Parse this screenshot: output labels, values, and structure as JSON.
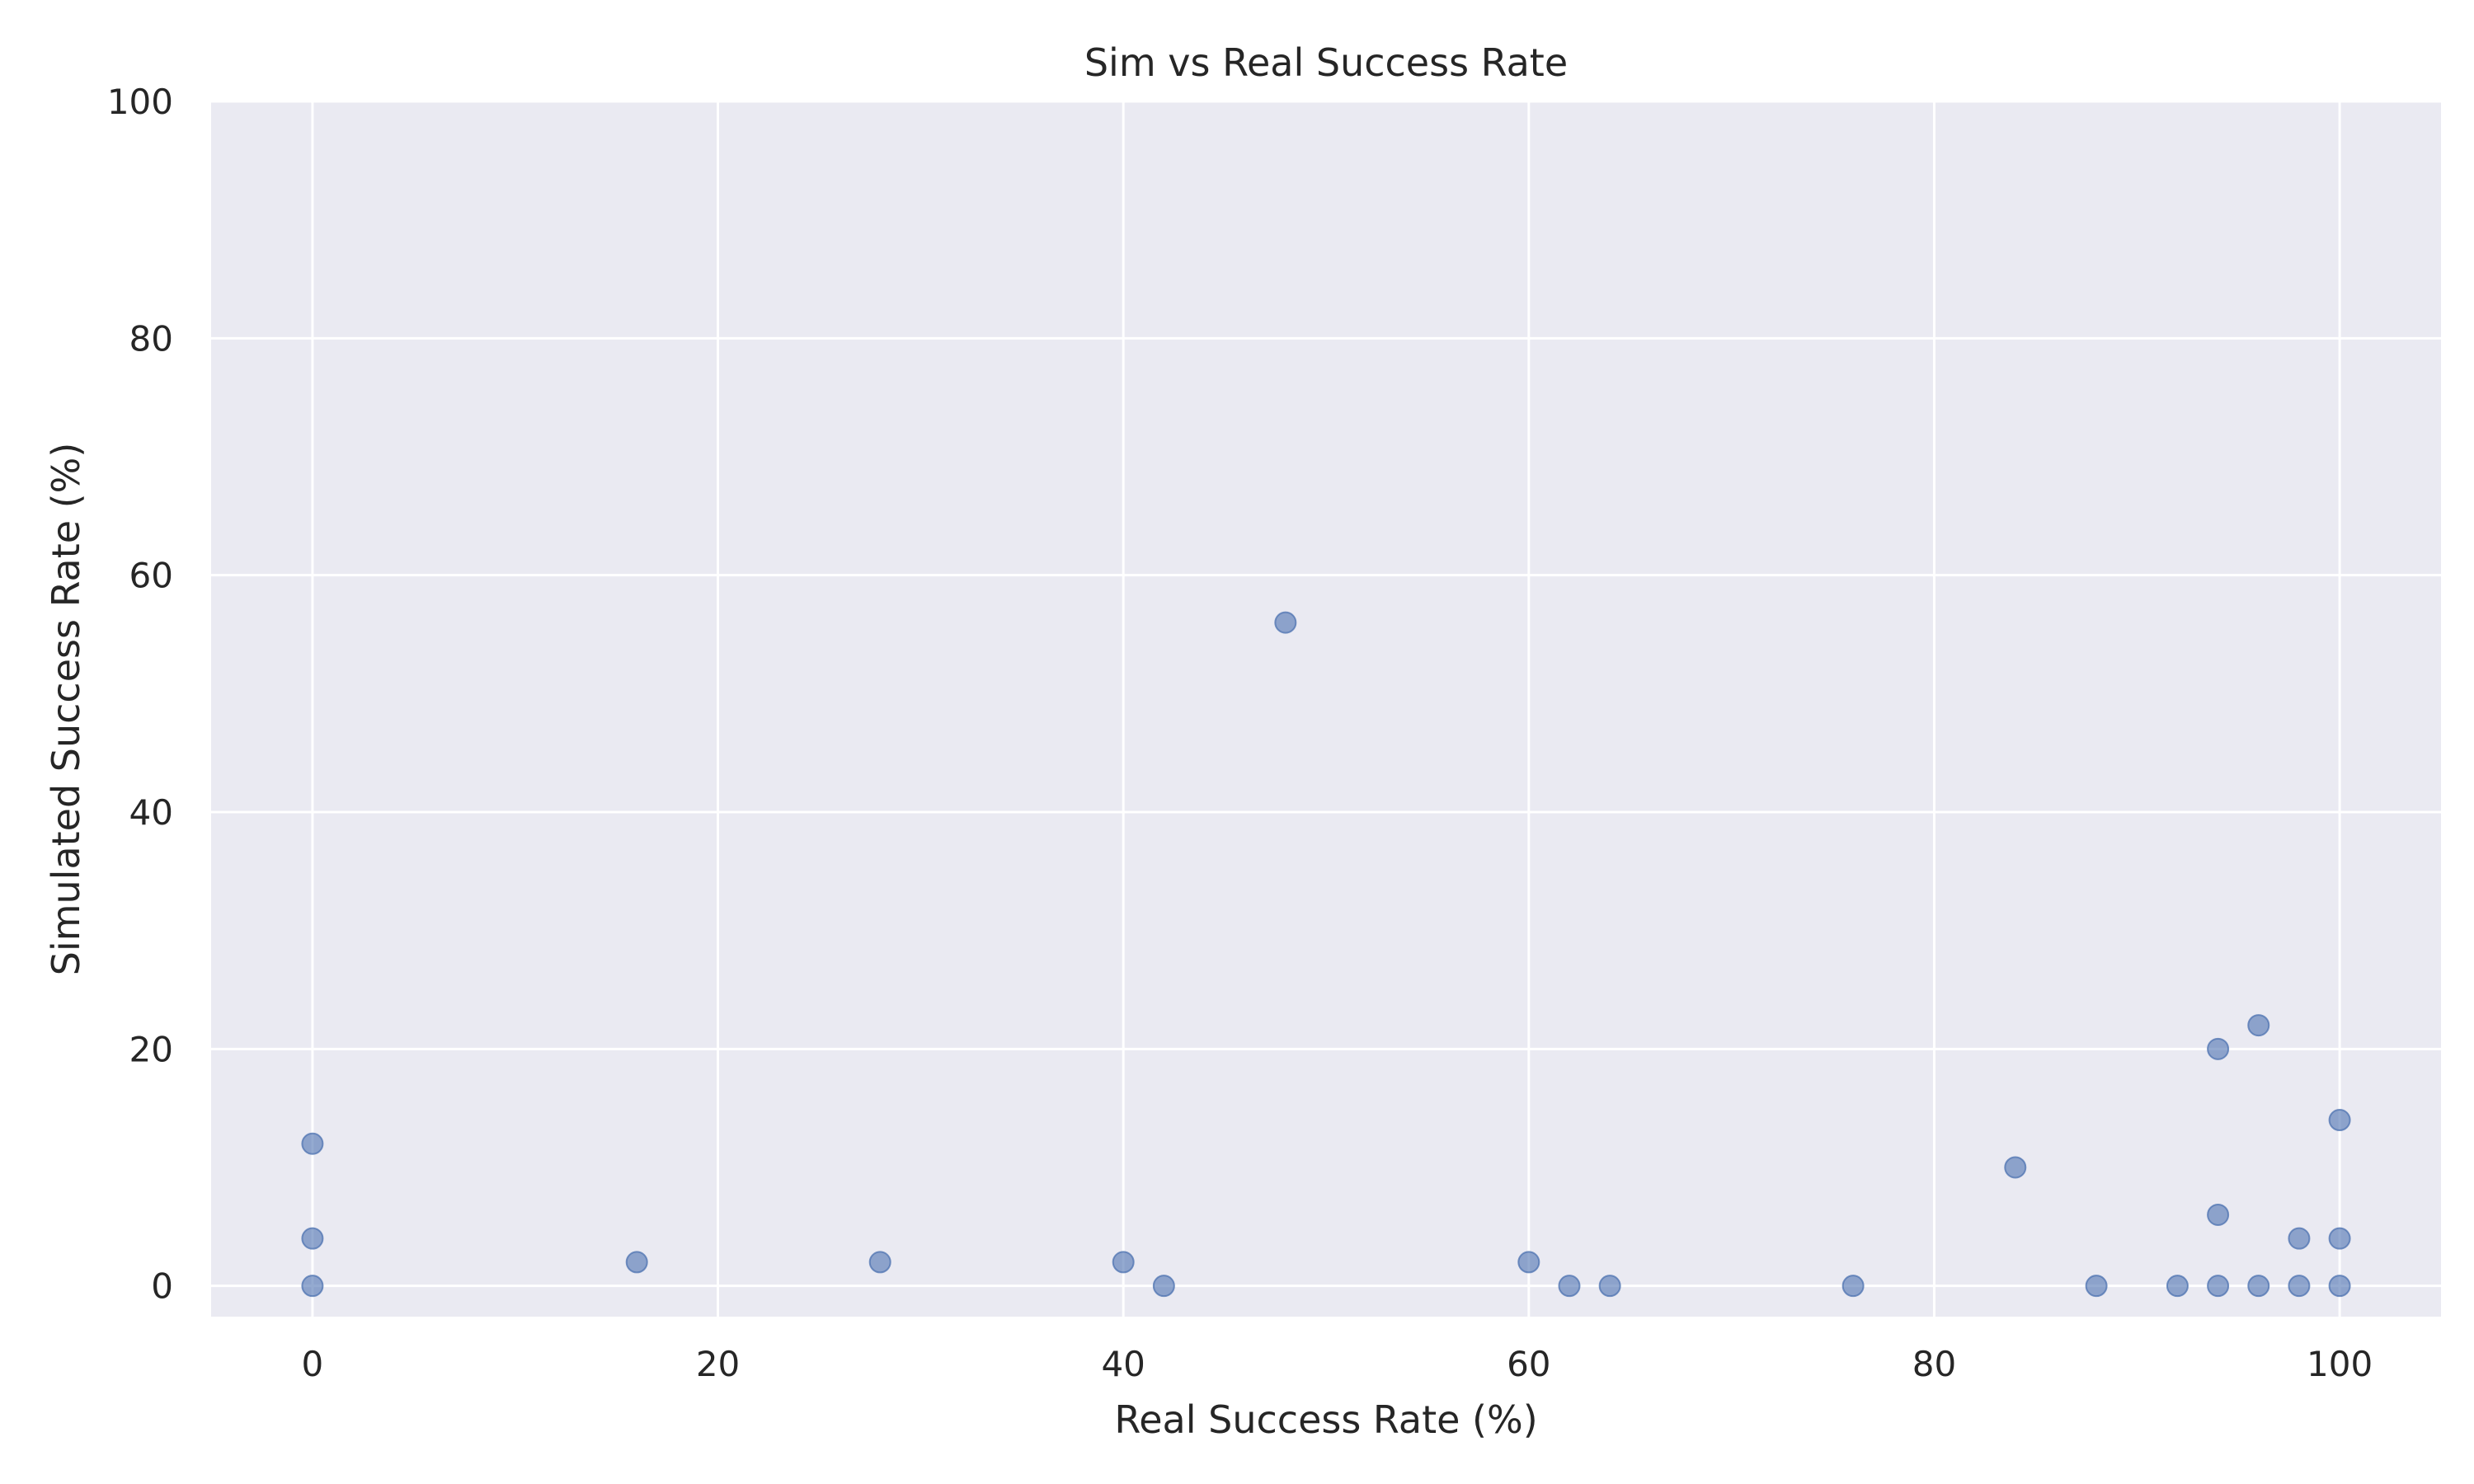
{
  "chart_data": {
    "type": "scatter",
    "title": "Sim vs Real Success Rate",
    "xlabel": "Real Success Rate (%)",
    "ylabel": "Simulated Success Rate (%)",
    "xlim": [
      -5,
      105
    ],
    "ylim": [
      -2.6,
      100
    ],
    "xticks": [
      0,
      20,
      40,
      60,
      80,
      100
    ],
    "yticks": [
      0,
      20,
      40,
      60,
      80,
      100
    ],
    "xtick_labels": [
      "0",
      "20",
      "40",
      "60",
      "80",
      "100"
    ],
    "ytick_labels": [
      "0",
      "20",
      "40",
      "60",
      "80",
      "100"
    ],
    "grid": true,
    "colors": {
      "background": "#eaeaf2",
      "grid": "#ffffff",
      "point": "#4c72b0"
    },
    "series": [
      {
        "points": [
          {
            "x": 0,
            "y": 0
          },
          {
            "x": 0,
            "y": 4
          },
          {
            "x": 0,
            "y": 12
          },
          {
            "x": 16,
            "y": 2
          },
          {
            "x": 28,
            "y": 2
          },
          {
            "x": 40,
            "y": 2
          },
          {
            "x": 42,
            "y": 0
          },
          {
            "x": 48,
            "y": 56
          },
          {
            "x": 60,
            "y": 2
          },
          {
            "x": 62,
            "y": 0
          },
          {
            "x": 64,
            "y": 0
          },
          {
            "x": 76,
            "y": 0
          },
          {
            "x": 84,
            "y": 10
          },
          {
            "x": 88,
            "y": 0
          },
          {
            "x": 92,
            "y": 0
          },
          {
            "x": 94,
            "y": 0
          },
          {
            "x": 94,
            "y": 6
          },
          {
            "x": 94,
            "y": 20
          },
          {
            "x": 96,
            "y": 0
          },
          {
            "x": 96,
            "y": 22
          },
          {
            "x": 98,
            "y": 0
          },
          {
            "x": 98,
            "y": 4
          },
          {
            "x": 100,
            "y": 0
          },
          {
            "x": 100,
            "y": 4
          },
          {
            "x": 100,
            "y": 14
          }
        ]
      }
    ]
  }
}
